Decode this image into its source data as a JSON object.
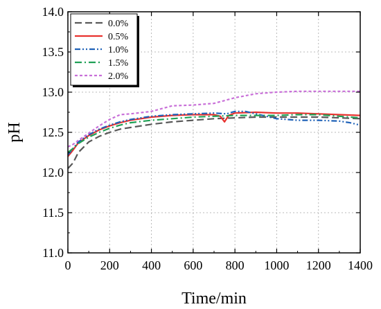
{
  "chart_data": {
    "type": "line",
    "title": "",
    "xlabel": "Time/min",
    "ylabel": "pH",
    "xlim": [
      0,
      1400
    ],
    "ylim": [
      11.0,
      14.0
    ],
    "grid": true,
    "legend_position": "top-left",
    "x_ticks": [
      "0",
      "200",
      "400",
      "600",
      "800",
      "1000",
      "1200",
      "1400"
    ],
    "y_ticks": [
      "11.0",
      "11.5",
      "12.0",
      "12.5",
      "13.0",
      "13.5",
      "14.0"
    ],
    "series": [
      {
        "name": "0.0%",
        "color": "#595959",
        "dash": "10 5",
        "x": [
          0,
          25,
          50,
          100,
          150,
          200,
          250,
          300,
          400,
          500,
          600,
          700,
          800,
          900,
          1000,
          1100,
          1200,
          1300,
          1400
        ],
        "y": [
          12.05,
          12.12,
          12.25,
          12.38,
          12.45,
          12.5,
          12.54,
          12.56,
          12.6,
          12.63,
          12.65,
          12.67,
          12.68,
          12.69,
          12.69,
          12.69,
          12.69,
          12.68,
          12.67
        ]
      },
      {
        "name": "0.5%",
        "color": "#e8312e",
        "dash": "",
        "x": [
          0,
          25,
          50,
          100,
          150,
          200,
          250,
          300,
          400,
          500,
          600,
          700,
          730,
          750,
          770,
          800,
          900,
          1000,
          1100,
          1200,
          1300,
          1400
        ],
        "y": [
          12.2,
          12.28,
          12.37,
          12.46,
          12.53,
          12.58,
          12.62,
          12.65,
          12.69,
          12.71,
          12.72,
          12.72,
          12.7,
          12.63,
          12.71,
          12.74,
          12.75,
          12.74,
          12.74,
          12.73,
          12.72,
          12.71
        ]
      },
      {
        "name": "1.0%",
        "color": "#1f62b8",
        "dash": "8 3 2 3 2 3",
        "x": [
          0,
          25,
          50,
          100,
          150,
          200,
          250,
          300,
          400,
          500,
          600,
          700,
          760,
          800,
          850,
          900,
          950,
          1000,
          1100,
          1200,
          1300,
          1350,
          1400
        ],
        "y": [
          12.22,
          12.3,
          12.38,
          12.47,
          12.54,
          12.59,
          12.63,
          12.66,
          12.7,
          12.72,
          12.73,
          12.74,
          12.73,
          12.76,
          12.76,
          12.73,
          12.7,
          12.67,
          12.65,
          12.65,
          12.64,
          12.62,
          12.59
        ]
      },
      {
        "name": "1.5%",
        "color": "#1fa055",
        "dash": "10 4 2 4",
        "x": [
          0,
          25,
          50,
          100,
          150,
          200,
          250,
          300,
          400,
          500,
          600,
          700,
          800,
          900,
          1000,
          1100,
          1200,
          1300,
          1400
        ],
        "y": [
          12.25,
          12.3,
          12.36,
          12.44,
          12.5,
          12.55,
          12.59,
          12.62,
          12.65,
          12.67,
          12.69,
          12.7,
          12.71,
          12.71,
          12.71,
          12.72,
          12.72,
          12.7,
          12.68
        ]
      },
      {
        "name": "2.0%",
        "color": "#c86fd8",
        "dash": "4 3",
        "x": [
          0,
          25,
          50,
          100,
          150,
          200,
          250,
          300,
          400,
          500,
          600,
          700,
          800,
          900,
          1000,
          1100,
          1200,
          1300,
          1400
        ],
        "y": [
          12.32,
          12.35,
          12.4,
          12.49,
          12.58,
          12.66,
          12.72,
          12.73,
          12.76,
          12.83,
          12.84,
          12.86,
          12.93,
          12.98,
          13.0,
          13.01,
          13.01,
          13.01,
          13.01
        ]
      }
    ]
  }
}
